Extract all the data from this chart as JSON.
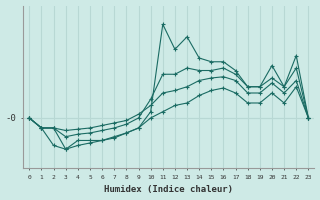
{
  "xlabel": "Humidex (Indice chaleur)",
  "ylabel": "",
  "bg_color": "#ceeae6",
  "line_color": "#1a6b63",
  "grid_color": "#b8d8d4",
  "x_values": [
    0,
    1,
    2,
    3,
    4,
    5,
    6,
    7,
    8,
    9,
    10,
    11,
    12,
    13,
    14,
    15,
    16,
    17,
    18,
    19,
    20,
    21,
    22,
    23
  ],
  "line1": [
    0.0,
    -0.8,
    -0.8,
    -2.5,
    -1.8,
    -1.8,
    -1.8,
    -1.5,
    -1.2,
    -0.8,
    0.5,
    7.5,
    5.5,
    6.5,
    4.8,
    4.5,
    4.5,
    3.8,
    2.5,
    2.5,
    4.2,
    2.5,
    5.0,
    0.0
  ],
  "line2": [
    0.0,
    -0.8,
    -0.8,
    -1.5,
    -1.3,
    -1.2,
    -1.0,
    -0.8,
    -0.5,
    0.0,
    1.5,
    3.5,
    3.5,
    4.0,
    3.8,
    3.8,
    4.0,
    3.5,
    2.5,
    2.5,
    3.2,
    2.5,
    4.0,
    0.0
  ],
  "line3": [
    0.0,
    -0.8,
    -0.8,
    -1.0,
    -0.9,
    -0.8,
    -0.6,
    -0.4,
    -0.2,
    0.3,
    1.0,
    2.0,
    2.2,
    2.5,
    3.0,
    3.2,
    3.3,
    3.0,
    2.0,
    2.0,
    2.8,
    2.0,
    3.0,
    0.0
  ],
  "line4": [
    0.0,
    -0.8,
    -2.2,
    -2.5,
    -2.2,
    -2.0,
    -1.8,
    -1.6,
    -1.2,
    -0.8,
    0.0,
    0.5,
    1.0,
    1.2,
    1.8,
    2.2,
    2.4,
    2.0,
    1.2,
    1.2,
    2.0,
    1.2,
    2.5,
    0.0
  ],
  "ylim": [
    -4.0,
    9.0
  ],
  "xlim": [
    -0.5,
    23.5
  ],
  "ytick_label": "-0",
  "ytick_value": 0.0
}
